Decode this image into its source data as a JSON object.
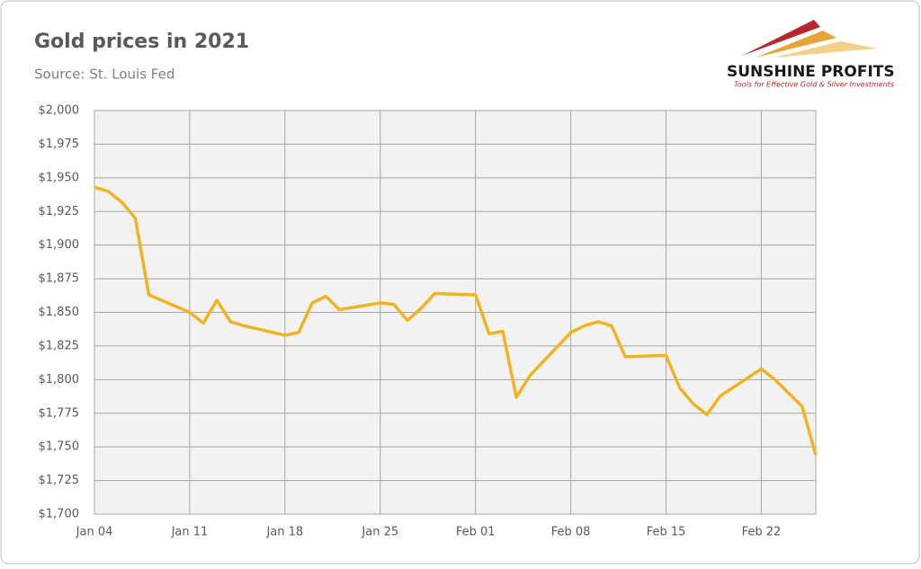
{
  "chart_data": {
    "type": "line",
    "title": "Gold prices in 2021",
    "subtitle": "Source: St. Louis Fed",
    "x": [
      "Jan 04",
      "Jan 05",
      "Jan 06",
      "Jan 07",
      "Jan 08",
      "Jan 11",
      "Jan 12",
      "Jan 13",
      "Jan 14",
      "Jan 15",
      "Jan 18",
      "Jan 19",
      "Jan 20",
      "Jan 21",
      "Jan 22",
      "Jan 25",
      "Jan 26",
      "Jan 27",
      "Jan 28",
      "Jan 29",
      "Feb 01",
      "Feb 02",
      "Feb 03",
      "Feb 04",
      "Feb 05",
      "Feb 08",
      "Feb 09",
      "Feb 10",
      "Feb 11",
      "Feb 12",
      "Feb 15",
      "Feb 16",
      "Feb 17",
      "Feb 18",
      "Feb 19",
      "Feb 22",
      "Feb 23",
      "Feb 24",
      "Feb 25",
      "Feb 26"
    ],
    "series": [
      {
        "name": "Gold price",
        "color": "#f0b323",
        "values": [
          1943,
          1940,
          1932,
          1920,
          1863,
          1850,
          1842,
          1859,
          1843,
          1840,
          1833,
          1835,
          1857,
          1862,
          1852,
          1857,
          1856,
          1844,
          1853,
          1864,
          1863,
          1834,
          1836,
          1787,
          1803,
          1835,
          1840,
          1843,
          1840,
          1817,
          1818,
          1794,
          1782,
          1774,
          1788,
          1808,
          1800,
          1790,
          1780,
          1744
        ]
      }
    ],
    "xlim": [
      "Jan 04",
      "Feb 26"
    ],
    "xticks": [
      "Jan 04",
      "Jan 11",
      "Jan 18",
      "Jan 25",
      "Feb 01",
      "Feb 08",
      "Feb 15",
      "Feb 22"
    ],
    "ylim": [
      1700,
      2000
    ],
    "yticks": [
      {
        "value": 1700,
        "label": "$1,700"
      },
      {
        "value": 1725,
        "label": "$1,725"
      },
      {
        "value": 1750,
        "label": "$1,750"
      },
      {
        "value": 1775,
        "label": "$1,775"
      },
      {
        "value": 1800,
        "label": "$1,800"
      },
      {
        "value": 1825,
        "label": "$1,825"
      },
      {
        "value": 1850,
        "label": "$1,850"
      },
      {
        "value": 1875,
        "label": "$1,875"
      },
      {
        "value": 1900,
        "label": "$1,900"
      },
      {
        "value": 1925,
        "label": "$1,925"
      },
      {
        "value": 1950,
        "label": "$1,950"
      },
      {
        "value": 1975,
        "label": "$1,975"
      },
      {
        "value": 2000,
        "label": "$2,000"
      }
    ],
    "grid": true
  },
  "logo": {
    "name": "SUNSHINE PROFITS",
    "tagline": "Tools for Effective Gold & Silver Investments"
  }
}
